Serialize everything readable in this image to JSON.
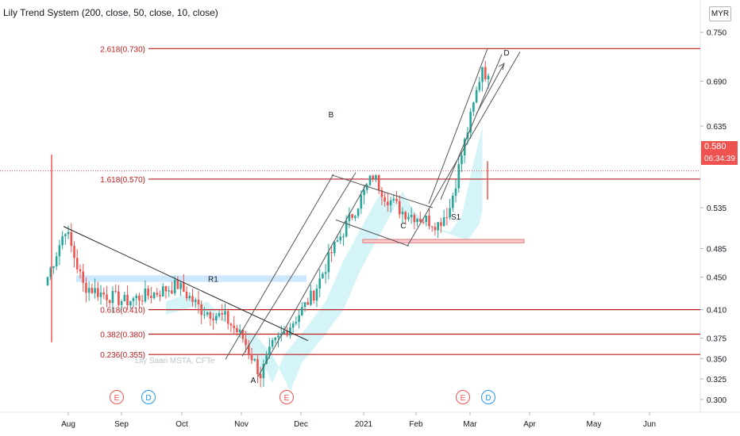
{
  "indicator": {
    "title": "Lily Trend System (200, close, 50, close, 10, close)"
  },
  "currency": "MYR",
  "watermark": "Lily Saari  MSTA, CFTe",
  "current_price": {
    "value": "0.580",
    "countdown": "06:34:39"
  },
  "colors": {
    "up": "#26a69a",
    "down": "#ef5350",
    "level": "#b71c1c",
    "fill": "#b2ebf2",
    "zone": "#90caf9",
    "axis_text": "#131722"
  },
  "chart_data": {
    "type": "candlestick",
    "title": "",
    "x_ticks": [
      "Aug",
      "Sep",
      "Oct",
      "Nov",
      "Dec",
      "2021",
      "Feb",
      "Mar",
      "Apr",
      "May",
      "Jun"
    ],
    "y_ticks": [
      0.3,
      0.325,
      0.35,
      0.375,
      0.41,
      0.45,
      0.485,
      0.535,
      0.58,
      0.635,
      0.69,
      0.75
    ],
    "y_range": [
      0.293,
      0.775
    ],
    "fib_levels": [
      {
        "label": "2.618(0.730)",
        "value": 0.73
      },
      {
        "label": "1.618(0.570)",
        "value": 0.57
      },
      {
        "label": "0.618(0.410)",
        "value": 0.41
      },
      {
        "label": "0.382(0.380)",
        "value": 0.38
      },
      {
        "label": "0.236(0.355)",
        "value": 0.355
      }
    ],
    "wave_labels": [
      "A",
      "B",
      "C",
      "D"
    ],
    "zones": [
      {
        "label": "R1"
      },
      {
        "label": "S1"
      }
    ],
    "events": [
      "E",
      "D",
      "E",
      "E",
      "D"
    ],
    "current_price": 0.58
  }
}
